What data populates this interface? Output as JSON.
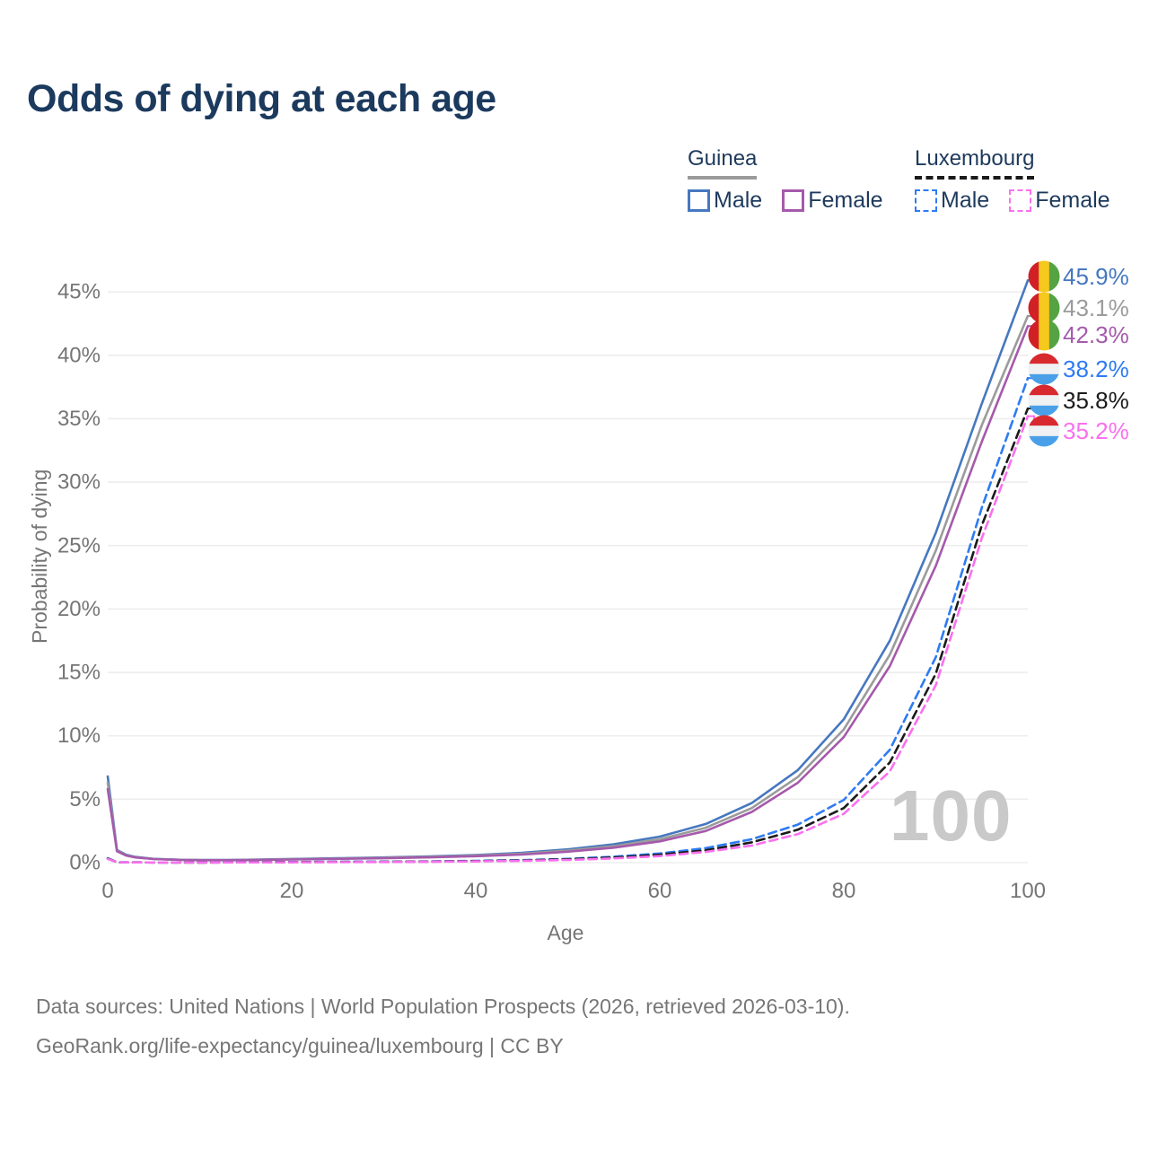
{
  "title": "Odds of dying at each age",
  "watermark": "100",
  "legend": {
    "groups": [
      {
        "label": "Guinea",
        "line_style": "solid",
        "underline_color": "#9b9b9b",
        "items": [
          {
            "label": "Male",
            "color": "#4678bf"
          },
          {
            "label": "Female",
            "color": "#a55aab"
          }
        ]
      },
      {
        "label": "Luxembourg",
        "line_style": "dashed",
        "underline_color": "#1b1b1b",
        "items": [
          {
            "label": "Male",
            "color": "#2e7bf2"
          },
          {
            "label": "Female",
            "color": "#fa70ee"
          }
        ]
      }
    ]
  },
  "flags": {
    "guinea": [
      "#d12026",
      "#f7c81e",
      "#55a343"
    ],
    "luxembourg": [
      "#d8292f",
      "#eff1f3",
      "#4aa0e8"
    ]
  },
  "chart_data": {
    "type": "line",
    "title": "Odds of dying at each age",
    "xlabel": "Age",
    "ylabel": "Probability of dying",
    "xlim": [
      0,
      100
    ],
    "ylim": [
      0,
      46
    ],
    "grid": true,
    "legend_position": "top-right",
    "x_ticks": [
      {
        "value": 0,
        "label": "0"
      },
      {
        "value": 20,
        "label": "20"
      },
      {
        "value": 40,
        "label": "40"
      },
      {
        "value": 60,
        "label": "60"
      },
      {
        "value": 80,
        "label": "80"
      },
      {
        "value": 100,
        "label": "100"
      }
    ],
    "y_ticks": [
      {
        "value": 0,
        "label": "0%"
      },
      {
        "value": 5,
        "label": "5%"
      },
      {
        "value": 10,
        "label": "10%"
      },
      {
        "value": 15,
        "label": "15%"
      },
      {
        "value": 20,
        "label": "20%"
      },
      {
        "value": 25,
        "label": "25%"
      },
      {
        "value": 30,
        "label": "30%"
      },
      {
        "value": 35,
        "label": "35%"
      },
      {
        "value": 40,
        "label": "40%"
      },
      {
        "value": 45,
        "label": "45%"
      }
    ],
    "series": [
      {
        "id": "guinea-male",
        "name": "Guinea Male",
        "country": "Guinea",
        "sex": "Male",
        "color": "#4678bf",
        "dash": false,
        "flag": "guinea",
        "end_label": "45.9%",
        "end_value": 45.9,
        "points": [
          [
            0,
            6.8
          ],
          [
            1,
            1.0
          ],
          [
            2,
            0.62
          ],
          [
            3,
            0.45
          ],
          [
            5,
            0.3
          ],
          [
            8,
            0.23
          ],
          [
            10,
            0.21
          ],
          [
            13,
            0.21
          ],
          [
            15,
            0.23
          ],
          [
            20,
            0.29
          ],
          [
            25,
            0.35
          ],
          [
            30,
            0.41
          ],
          [
            35,
            0.49
          ],
          [
            40,
            0.6
          ],
          [
            45,
            0.78
          ],
          [
            50,
            1.05
          ],
          [
            55,
            1.45
          ],
          [
            60,
            2.05
          ],
          [
            65,
            3.05
          ],
          [
            70,
            4.7
          ],
          [
            75,
            7.3
          ],
          [
            80,
            11.3
          ],
          [
            85,
            17.5
          ],
          [
            90,
            26.0
          ],
          [
            95,
            36.2
          ],
          [
            100,
            45.9
          ]
        ]
      },
      {
        "id": "guinea-all",
        "name": "Guinea Both sexes",
        "country": "Guinea",
        "sex": "Both",
        "color": "#9b9b9b",
        "dash": false,
        "flag": "guinea",
        "end_label": "43.1%",
        "end_value": 43.1,
        "points": [
          [
            0,
            6.3
          ],
          [
            1,
            0.95
          ],
          [
            2,
            0.59
          ],
          [
            3,
            0.43
          ],
          [
            5,
            0.29
          ],
          [
            8,
            0.22
          ],
          [
            10,
            0.2
          ],
          [
            13,
            0.2
          ],
          [
            15,
            0.21
          ],
          [
            20,
            0.27
          ],
          [
            25,
            0.32
          ],
          [
            30,
            0.38
          ],
          [
            35,
            0.45
          ],
          [
            40,
            0.55
          ],
          [
            45,
            0.7
          ],
          [
            50,
            0.95
          ],
          [
            55,
            1.3
          ],
          [
            60,
            1.85
          ],
          [
            65,
            2.75
          ],
          [
            70,
            4.3
          ],
          [
            75,
            6.75
          ],
          [
            80,
            10.5
          ],
          [
            85,
            16.4
          ],
          [
            90,
            24.6
          ],
          [
            95,
            34.5
          ],
          [
            100,
            43.1
          ]
        ]
      },
      {
        "id": "guinea-female",
        "name": "Guinea Female",
        "country": "Guinea",
        "sex": "Female",
        "color": "#a55aab",
        "dash": false,
        "flag": "guinea",
        "end_label": "42.3%",
        "end_value": 42.3,
        "points": [
          [
            0,
            5.8
          ],
          [
            1,
            0.9
          ],
          [
            2,
            0.56
          ],
          [
            3,
            0.41
          ],
          [
            5,
            0.28
          ],
          [
            8,
            0.21
          ],
          [
            10,
            0.19
          ],
          [
            13,
            0.19
          ],
          [
            15,
            0.2
          ],
          [
            20,
            0.25
          ],
          [
            25,
            0.3
          ],
          [
            30,
            0.35
          ],
          [
            35,
            0.42
          ],
          [
            40,
            0.51
          ],
          [
            45,
            0.64
          ],
          [
            50,
            0.86
          ],
          [
            55,
            1.18
          ],
          [
            60,
            1.68
          ],
          [
            65,
            2.5
          ],
          [
            70,
            4.0
          ],
          [
            75,
            6.3
          ],
          [
            80,
            9.9
          ],
          [
            85,
            15.5
          ],
          [
            90,
            23.4
          ],
          [
            95,
            33.2
          ],
          [
            100,
            42.3
          ]
        ]
      },
      {
        "id": "luxembourg-male",
        "name": "Luxembourg Male",
        "country": "Luxembourg",
        "sex": "Male",
        "color": "#2e7bf2",
        "dash": true,
        "flag": "luxembourg",
        "end_label": "38.2%",
        "end_value": 38.2,
        "points": [
          [
            0,
            0.35
          ],
          [
            1,
            0.03
          ],
          [
            5,
            0.015
          ],
          [
            10,
            0.012
          ],
          [
            15,
            0.03
          ],
          [
            20,
            0.06
          ],
          [
            25,
            0.07
          ],
          [
            30,
            0.08
          ],
          [
            35,
            0.1
          ],
          [
            40,
            0.14
          ],
          [
            45,
            0.2
          ],
          [
            50,
            0.3
          ],
          [
            55,
            0.47
          ],
          [
            60,
            0.72
          ],
          [
            65,
            1.15
          ],
          [
            70,
            1.85
          ],
          [
            75,
            3.0
          ],
          [
            80,
            4.95
          ],
          [
            85,
            8.9
          ],
          [
            90,
            16.2
          ],
          [
            95,
            28.0
          ],
          [
            100,
            38.2
          ]
        ]
      },
      {
        "id": "luxembourg-all",
        "name": "Luxembourg Both sexes",
        "country": "Luxembourg",
        "sex": "Both",
        "color": "#1b1b1b",
        "dash": true,
        "flag": "luxembourg",
        "end_label": "35.8%",
        "end_value": 35.8,
        "points": [
          [
            0,
            0.32
          ],
          [
            1,
            0.028
          ],
          [
            5,
            0.013
          ],
          [
            10,
            0.01
          ],
          [
            15,
            0.025
          ],
          [
            20,
            0.045
          ],
          [
            25,
            0.055
          ],
          [
            30,
            0.065
          ],
          [
            35,
            0.085
          ],
          [
            40,
            0.12
          ],
          [
            45,
            0.17
          ],
          [
            50,
            0.26
          ],
          [
            55,
            0.4
          ],
          [
            60,
            0.62
          ],
          [
            65,
            0.98
          ],
          [
            70,
            1.6
          ],
          [
            75,
            2.6
          ],
          [
            80,
            4.3
          ],
          [
            85,
            7.9
          ],
          [
            90,
            14.9
          ],
          [
            95,
            26.6
          ],
          [
            100,
            35.8
          ]
        ]
      },
      {
        "id": "luxembourg-female",
        "name": "Luxembourg Female",
        "country": "Luxembourg",
        "sex": "Female",
        "color": "#fa70ee",
        "dash": true,
        "flag": "luxembourg",
        "end_label": "35.2%",
        "end_value": 35.2,
        "points": [
          [
            0,
            0.3
          ],
          [
            1,
            0.025
          ],
          [
            5,
            0.011
          ],
          [
            10,
            0.009
          ],
          [
            15,
            0.02
          ],
          [
            20,
            0.03
          ],
          [
            25,
            0.04
          ],
          [
            30,
            0.05
          ],
          [
            35,
            0.07
          ],
          [
            40,
            0.1
          ],
          [
            45,
            0.14
          ],
          [
            50,
            0.21
          ],
          [
            55,
            0.33
          ],
          [
            60,
            0.52
          ],
          [
            65,
            0.85
          ],
          [
            70,
            1.35
          ],
          [
            75,
            2.25
          ],
          [
            80,
            3.85
          ],
          [
            85,
            7.2
          ],
          [
            90,
            14.0
          ],
          [
            95,
            25.6
          ],
          [
            100,
            35.2
          ]
        ]
      }
    ]
  },
  "footer": {
    "line1": "Data sources: United Nations | World Population Prospects (2026, retrieved 2026-03-10).",
    "line2": "GeoRank.org/life-expectancy/guinea/luxembourg | CC BY"
  }
}
